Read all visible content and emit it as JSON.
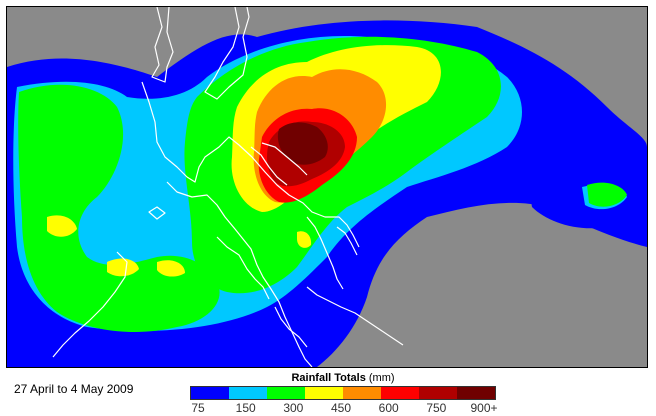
{
  "caption": "27 April to 4 May 2009",
  "legend": {
    "title_bold": "Rainfall Totals",
    "title_unit": "(mm)",
    "colors": [
      "#0000ff",
      "#00c8ff",
      "#00ff00",
      "#ffff00",
      "#ff8c00",
      "#ff0000",
      "#b00000",
      "#700000"
    ],
    "ticks": [
      "75",
      "150",
      "300",
      "450",
      "600",
      "750",
      "900+"
    ]
  },
  "colors": {
    "no_data": "#8a8a8a",
    "coastline": "#ffffff"
  }
}
